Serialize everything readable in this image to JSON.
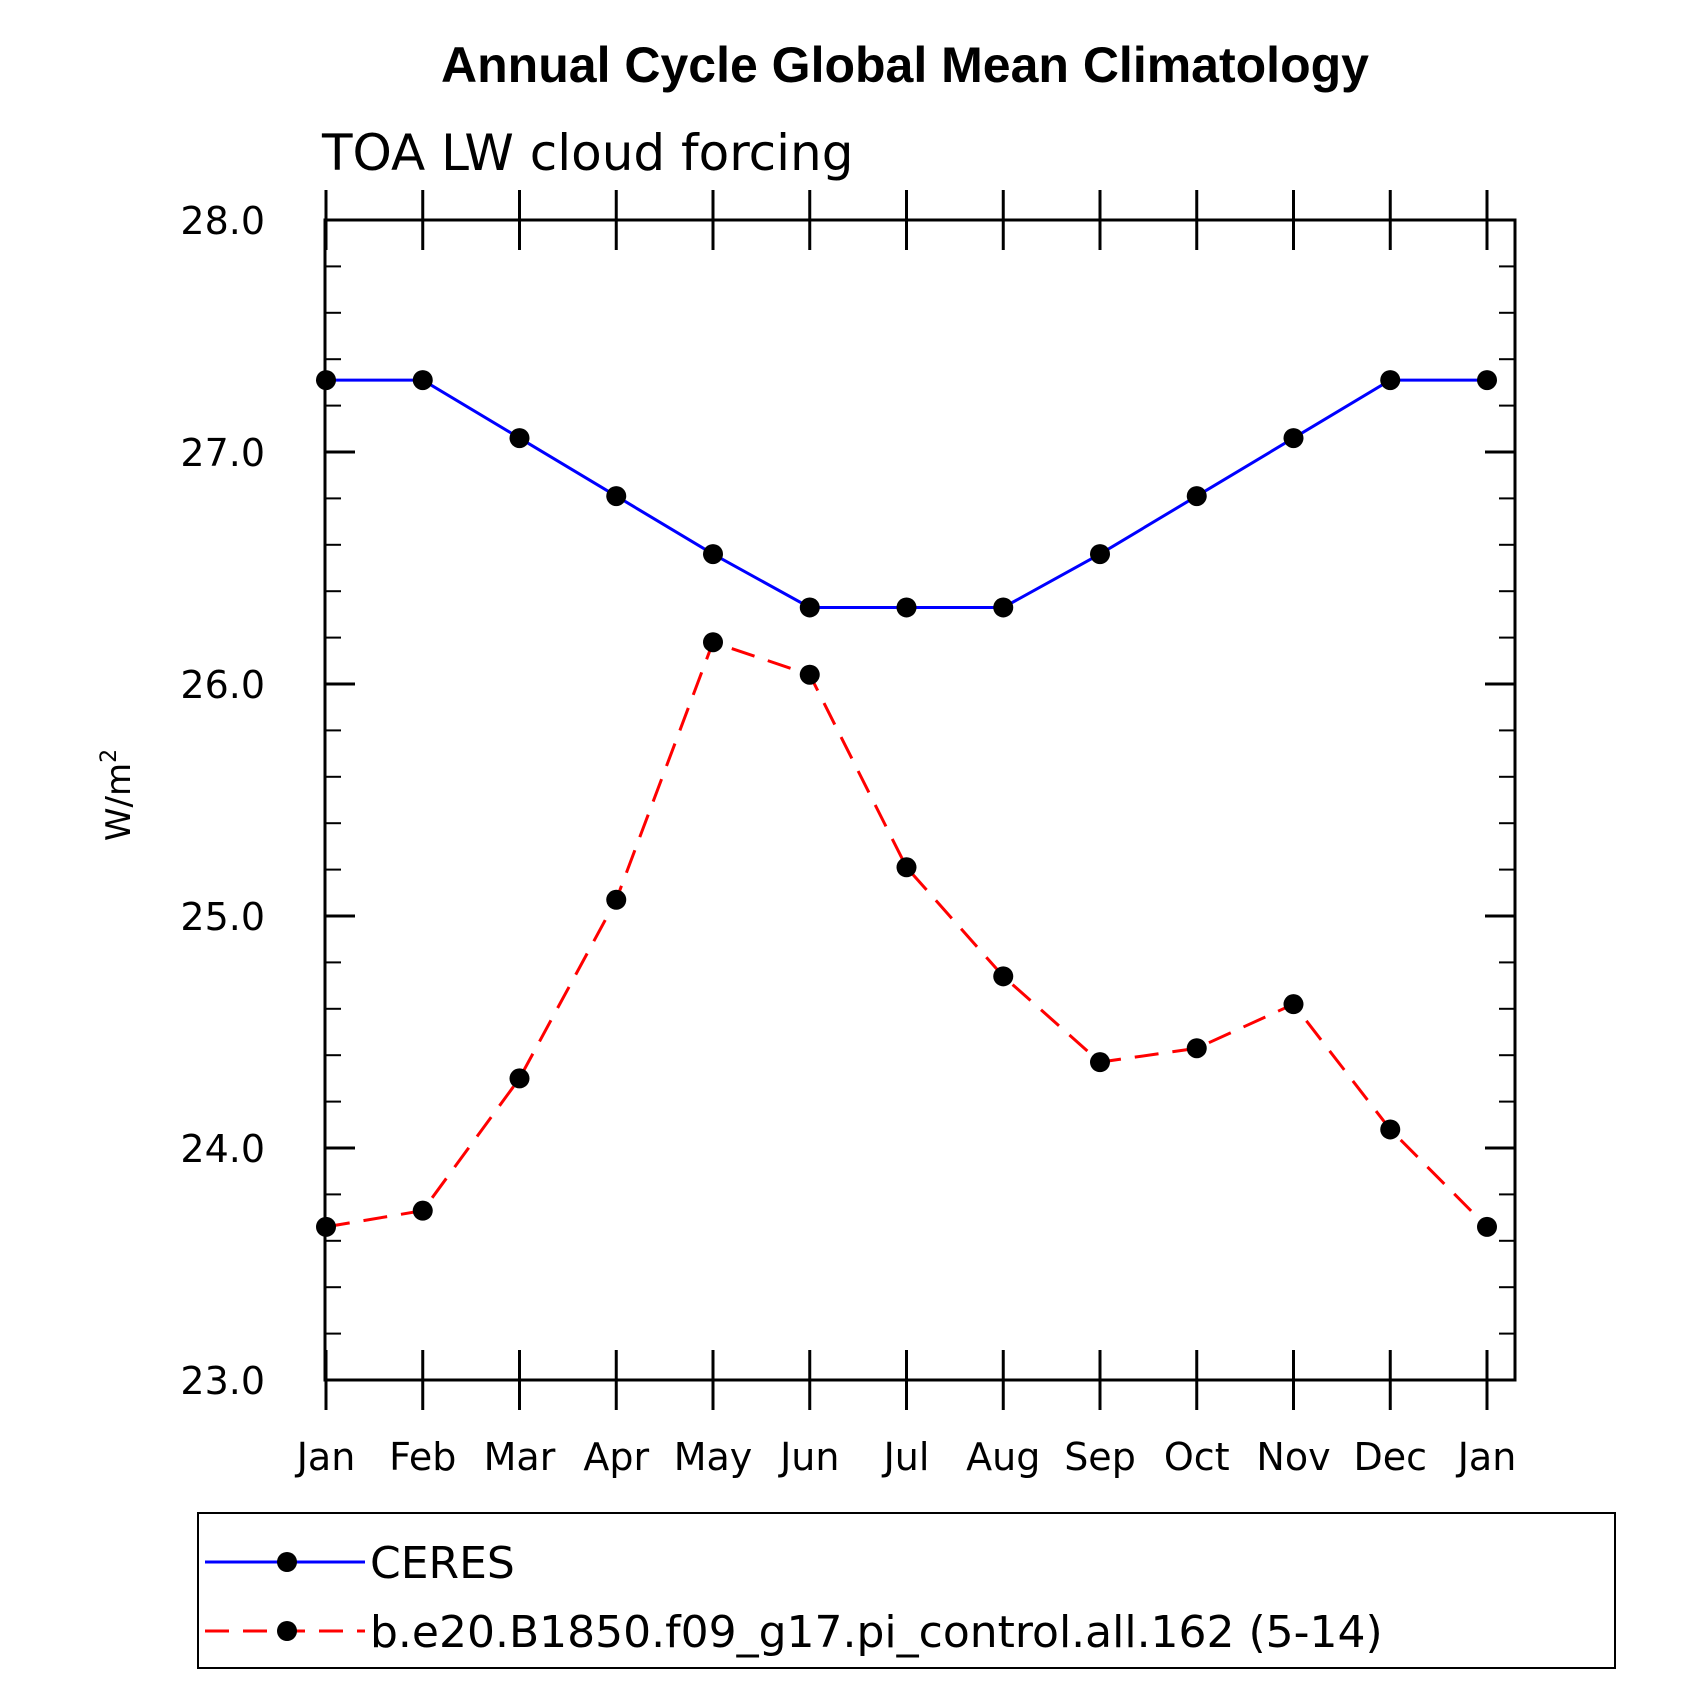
{
  "chart_data": {
    "type": "line",
    "title": "Annual Cycle Global Mean Climatology",
    "subtitle": "TOA LW cloud forcing",
    "ylabel": "W/m",
    "ylabel_sup": "2",
    "xlabel": "",
    "categories": [
      "Jan",
      "Feb",
      "Mar",
      "Apr",
      "May",
      "Jun",
      "Jul",
      "Aug",
      "Sep",
      "Oct",
      "Nov",
      "Dec",
      "Jan"
    ],
    "ylim": [
      23.0,
      28.0
    ],
    "y_ticks": [
      "23.0",
      "24.0",
      "25.0",
      "26.0",
      "27.0",
      "28.0"
    ],
    "y_minor_step": 0.2,
    "series": [
      {
        "name": "CERES",
        "color": "#0000ff",
        "dash": "solid",
        "values": [
          27.31,
          27.31,
          27.06,
          26.81,
          26.56,
          26.33,
          26.33,
          26.33,
          26.56,
          26.81,
          27.06,
          27.31,
          27.31
        ]
      },
      {
        "name": "b.e20.B1850.f09_g17.pi_control.all.162 (5-14)",
        "color": "#ff0000",
        "dash": "dashed",
        "values": [
          23.66,
          23.73,
          24.3,
          25.07,
          26.18,
          26.04,
          25.21,
          24.74,
          24.37,
          24.43,
          24.62,
          24.08,
          23.66
        ]
      }
    ],
    "marker_color": "#000000",
    "legend_position": "bottom"
  }
}
